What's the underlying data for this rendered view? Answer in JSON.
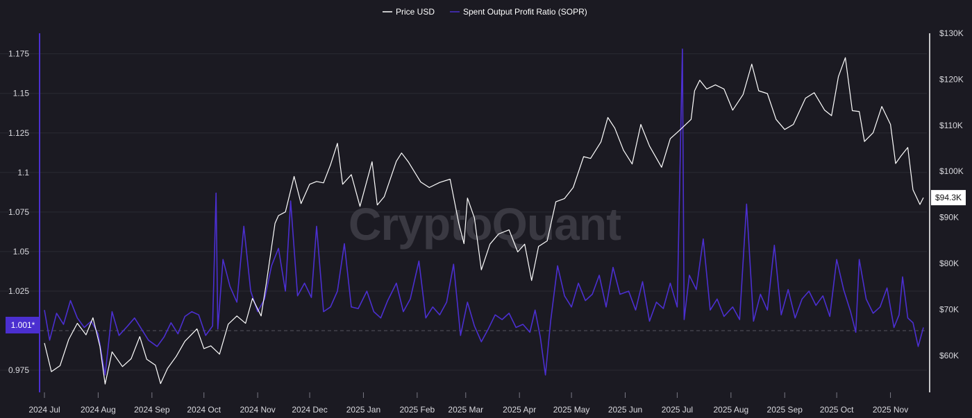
{
  "legend": [
    {
      "label": "Price USD",
      "color": "#ffffff"
    },
    {
      "label": "Spent Output Profit Ratio (SOPR)",
      "color": "#4b2fd0"
    }
  ],
  "watermark": "CryptoQuant",
  "badges": {
    "sopr_current": "1.001*",
    "price_current": "$94.3K"
  },
  "colors": {
    "background": "#1b1a22",
    "grid": "#2b2a33",
    "sopr": "#4b2fd0",
    "price": "#ffffff",
    "sopr_badge": "#4b2fd0",
    "price_badge": "#ffffff"
  },
  "chart_data": {
    "type": "line",
    "title": "",
    "legend_position": "top-center",
    "grid": true,
    "x_axis": {
      "start": "2024-07-01",
      "end": "2025-11-20",
      "tick_labels": [
        "2024 Jul",
        "2024 Aug",
        "2024 Sep",
        "2024 Oct",
        "2024 Nov",
        "2024 Dec",
        "2025 Jan",
        "2025 Feb",
        "2025 Mar",
        "2025 Apr",
        "2025 May",
        "2025 Jun",
        "2025 Jul",
        "2025 Aug",
        "2025 Sep",
        "2025 Oct",
        "2025 Nov"
      ]
    },
    "y_left": {
      "label": "",
      "range": [
        0.961,
        1.188
      ],
      "ticks": [
        0.975,
        1.0,
        1.025,
        1.05,
        1.075,
        1.1,
        1.125,
        1.15,
        1.175
      ],
      "tick_labels": [
        "0.975",
        "",
        "1.025",
        "1.05",
        "1.075",
        "1.1",
        "1.125",
        "1.15",
        "1.175"
      ],
      "reference_line": 1.0
    },
    "y_right": {
      "label": "",
      "range": [
        52000,
        130000
      ],
      "ticks": [
        60000,
        70000,
        80000,
        90000,
        100000,
        110000,
        120000,
        130000
      ],
      "tick_labels": [
        "$60K",
        "$70K",
        "$80K",
        "$90K",
        "$100K",
        "$110K",
        "$120K",
        "$130K"
      ]
    },
    "series": [
      {
        "name": "Price USD",
        "axis": "right",
        "color": "#ffffff",
        "points": [
          [
            "2024-07-01",
            62700
          ],
          [
            "2024-07-05",
            56500
          ],
          [
            "2024-07-10",
            57800
          ],
          [
            "2024-07-15",
            63500
          ],
          [
            "2024-07-20",
            67000
          ],
          [
            "2024-07-25",
            64500
          ],
          [
            "2024-07-29",
            68200
          ],
          [
            "2024-08-02",
            62000
          ],
          [
            "2024-08-05",
            53800
          ],
          [
            "2024-08-09",
            60800
          ],
          [
            "2024-08-15",
            57600
          ],
          [
            "2024-08-20",
            59300
          ],
          [
            "2024-08-25",
            64100
          ],
          [
            "2024-08-29",
            59200
          ],
          [
            "2024-09-03",
            57900
          ],
          [
            "2024-09-06",
            53900
          ],
          [
            "2024-09-10",
            57200
          ],
          [
            "2024-09-15",
            59800
          ],
          [
            "2024-09-20",
            63100
          ],
          [
            "2024-09-27",
            65800
          ],
          [
            "2024-10-01",
            61500
          ],
          [
            "2024-10-05",
            62100
          ],
          [
            "2024-10-10",
            60300
          ],
          [
            "2024-10-15",
            66800
          ],
          [
            "2024-10-20",
            68600
          ],
          [
            "2024-10-25",
            67000
          ],
          [
            "2024-10-29",
            72400
          ],
          [
            "2024-11-03",
            68600
          ],
          [
            "2024-11-06",
            75700
          ],
          [
            "2024-11-11",
            88700
          ],
          [
            "2024-11-13",
            90400
          ],
          [
            "2024-11-17",
            91200
          ],
          [
            "2024-11-22",
            98900
          ],
          [
            "2024-11-26",
            93000
          ],
          [
            "2024-12-01",
            97200
          ],
          [
            "2024-12-05",
            97800
          ],
          [
            "2024-12-09",
            97500
          ],
          [
            "2024-12-13",
            101400
          ],
          [
            "2024-12-17",
            106100
          ],
          [
            "2024-12-20",
            97200
          ],
          [
            "2024-12-25",
            99300
          ],
          [
            "2024-12-30",
            92400
          ],
          [
            "2025-01-06",
            102100
          ],
          [
            "2025-01-09",
            92700
          ],
          [
            "2025-01-13",
            94500
          ],
          [
            "2025-01-20",
            102200
          ],
          [
            "2025-01-23",
            104000
          ],
          [
            "2025-01-27",
            102000
          ],
          [
            "2025-02-03",
            97700
          ],
          [
            "2025-02-08",
            96500
          ],
          [
            "2025-02-14",
            97600
          ],
          [
            "2025-02-20",
            98300
          ],
          [
            "2025-02-25",
            88700
          ],
          [
            "2025-02-28",
            84300
          ],
          [
            "2025-03-02",
            94200
          ],
          [
            "2025-03-06",
            89900
          ],
          [
            "2025-03-10",
            78600
          ],
          [
            "2025-03-15",
            84200
          ],
          [
            "2025-03-20",
            86400
          ],
          [
            "2025-03-26",
            87300
          ],
          [
            "2025-03-31",
            82500
          ],
          [
            "2025-04-04",
            84200
          ],
          [
            "2025-04-08",
            76300
          ],
          [
            "2025-04-12",
            83700
          ],
          [
            "2025-04-17",
            84900
          ],
          [
            "2025-04-22",
            93400
          ],
          [
            "2025-04-27",
            94100
          ],
          [
            "2025-05-02",
            96500
          ],
          [
            "2025-05-08",
            103200
          ],
          [
            "2025-05-12",
            102800
          ],
          [
            "2025-05-18",
            106400
          ],
          [
            "2025-05-22",
            111700
          ],
          [
            "2025-05-26",
            109400
          ],
          [
            "2025-05-31",
            104600
          ],
          [
            "2025-06-05",
            101600
          ],
          [
            "2025-06-10",
            110200
          ],
          [
            "2025-06-15",
            105500
          ],
          [
            "2025-06-22",
            100900
          ],
          [
            "2025-06-27",
            107100
          ],
          [
            "2025-07-02",
            108800
          ],
          [
            "2025-07-09",
            111300
          ],
          [
            "2025-07-11",
            117500
          ],
          [
            "2025-07-14",
            119800
          ],
          [
            "2025-07-18",
            117900
          ],
          [
            "2025-07-23",
            118800
          ],
          [
            "2025-07-28",
            117900
          ],
          [
            "2025-08-02",
            113300
          ],
          [
            "2025-08-08",
            116700
          ],
          [
            "2025-08-13",
            123300
          ],
          [
            "2025-08-17",
            117500
          ],
          [
            "2025-08-22",
            116900
          ],
          [
            "2025-08-27",
            111300
          ],
          [
            "2025-09-01",
            109100
          ],
          [
            "2025-09-06",
            110200
          ],
          [
            "2025-09-13",
            115900
          ],
          [
            "2025-09-18",
            117100
          ],
          [
            "2025-09-24",
            113300
          ],
          [
            "2025-09-28",
            112100
          ],
          [
            "2025-10-02",
            120600
          ],
          [
            "2025-10-06",
            124700
          ],
          [
            "2025-10-10",
            113200
          ],
          [
            "2025-10-14",
            113000
          ],
          [
            "2025-10-17",
            106500
          ],
          [
            "2025-10-22",
            108400
          ],
          [
            "2025-10-27",
            114100
          ],
          [
            "2025-11-01",
            110200
          ],
          [
            "2025-11-04",
            101700
          ],
          [
            "2025-11-07",
            103300
          ],
          [
            "2025-11-11",
            105200
          ],
          [
            "2025-11-14",
            96000
          ],
          [
            "2025-11-18",
            92800
          ],
          [
            "2025-11-20",
            94300
          ]
        ]
      },
      {
        "name": "Spent Output Profit Ratio (SOPR)",
        "axis": "left",
        "color": "#4b2fd0",
        "points": [
          [
            "2024-07-01",
            1.013
          ],
          [
            "2024-07-04",
            0.994
          ],
          [
            "2024-07-08",
            1.011
          ],
          [
            "2024-07-12",
            1.004
          ],
          [
            "2024-07-16",
            1.019
          ],
          [
            "2024-07-20",
            1.008
          ],
          [
            "2024-07-24",
            1.002
          ],
          [
            "2024-07-28",
            1.006
          ],
          [
            "2024-08-01",
            0.998
          ],
          [
            "2024-08-05",
            0.972
          ],
          [
            "2024-08-09",
            1.012
          ],
          [
            "2024-08-13",
            0.997
          ],
          [
            "2024-08-18",
            1.003
          ],
          [
            "2024-08-22",
            1.008
          ],
          [
            "2024-08-26",
            1.001
          ],
          [
            "2024-08-30",
            0.994
          ],
          [
            "2024-09-04",
            0.99
          ],
          [
            "2024-09-08",
            0.996
          ],
          [
            "2024-09-12",
            1.005
          ],
          [
            "2024-09-16",
            0.998
          ],
          [
            "2024-09-20",
            1.009
          ],
          [
            "2024-09-24",
            1.012
          ],
          [
            "2024-09-28",
            1.01
          ],
          [
            "2024-10-02",
            0.997
          ],
          [
            "2024-10-06",
            1.003
          ],
          [
            "2024-10-08",
            1.087
          ],
          [
            "2024-10-09",
            1.001
          ],
          [
            "2024-10-12",
            1.045
          ],
          [
            "2024-10-16",
            1.028
          ],
          [
            "2024-10-20",
            1.018
          ],
          [
            "2024-10-24",
            1.066
          ],
          [
            "2024-10-28",
            1.025
          ],
          [
            "2024-11-01",
            1.012
          ],
          [
            "2024-11-05",
            1.02
          ],
          [
            "2024-11-09",
            1.041
          ],
          [
            "2024-11-13",
            1.052
          ],
          [
            "2024-11-17",
            1.025
          ],
          [
            "2024-11-20",
            1.082
          ],
          [
            "2024-11-24",
            1.022
          ],
          [
            "2024-11-28",
            1.03
          ],
          [
            "2024-12-02",
            1.021
          ],
          [
            "2024-12-05",
            1.066
          ],
          [
            "2024-12-09",
            1.012
          ],
          [
            "2024-12-13",
            1.015
          ],
          [
            "2024-12-17",
            1.025
          ],
          [
            "2024-12-21",
            1.055
          ],
          [
            "2024-12-25",
            1.015
          ],
          [
            "2024-12-29",
            1.014
          ],
          [
            "2025-01-03",
            1.025
          ],
          [
            "2025-01-07",
            1.012
          ],
          [
            "2025-01-11",
            1.008
          ],
          [
            "2025-01-15",
            1.019
          ],
          [
            "2025-01-20",
            1.03
          ],
          [
            "2025-01-24",
            1.012
          ],
          [
            "2025-01-28",
            1.02
          ],
          [
            "2025-02-02",
            1.044
          ],
          [
            "2025-02-06",
            1.008
          ],
          [
            "2025-02-10",
            1.015
          ],
          [
            "2025-02-14",
            1.01
          ],
          [
            "2025-02-18",
            1.018
          ],
          [
            "2025-02-22",
            1.042
          ],
          [
            "2025-02-26",
            0.997
          ],
          [
            "2025-03-02",
            1.018
          ],
          [
            "2025-03-06",
            1.003
          ],
          [
            "2025-03-10",
            0.993
          ],
          [
            "2025-03-14",
            1.001
          ],
          [
            "2025-03-18",
            1.01
          ],
          [
            "2025-03-22",
            1.007
          ],
          [
            "2025-03-26",
            1.011
          ],
          [
            "2025-03-30",
            1.002
          ],
          [
            "2025-04-03",
            1.004
          ],
          [
            "2025-04-07",
            0.999
          ],
          [
            "2025-04-10",
            1.013
          ],
          [
            "2025-04-13",
            0.996
          ],
          [
            "2025-04-16",
            0.972
          ],
          [
            "2025-04-19",
            1.006
          ],
          [
            "2025-04-23",
            1.041
          ],
          [
            "2025-04-27",
            1.022
          ],
          [
            "2025-05-01",
            1.015
          ],
          [
            "2025-05-05",
            1.03
          ],
          [
            "2025-05-09",
            1.019
          ],
          [
            "2025-05-13",
            1.023
          ],
          [
            "2025-05-17",
            1.035
          ],
          [
            "2025-05-21",
            1.015
          ],
          [
            "2025-05-25",
            1.04
          ],
          [
            "2025-05-29",
            1.023
          ],
          [
            "2025-06-03",
            1.025
          ],
          [
            "2025-06-07",
            1.013
          ],
          [
            "2025-06-11",
            1.031
          ],
          [
            "2025-06-15",
            1.006
          ],
          [
            "2025-06-19",
            1.018
          ],
          [
            "2025-06-23",
            1.014
          ],
          [
            "2025-06-27",
            1.03
          ],
          [
            "2025-07-01",
            1.015
          ],
          [
            "2025-07-04",
            1.178
          ],
          [
            "2025-07-05",
            1.007
          ],
          [
            "2025-07-08",
            1.035
          ],
          [
            "2025-07-12",
            1.026
          ],
          [
            "2025-07-16",
            1.058
          ],
          [
            "2025-07-20",
            1.013
          ],
          [
            "2025-07-24",
            1.02
          ],
          [
            "2025-07-28",
            1.009
          ],
          [
            "2025-08-02",
            1.015
          ],
          [
            "2025-08-06",
            1.007
          ],
          [
            "2025-08-10",
            1.08
          ],
          [
            "2025-08-14",
            1.006
          ],
          [
            "2025-08-18",
            1.023
          ],
          [
            "2025-08-22",
            1.013
          ],
          [
            "2025-08-26",
            1.054
          ],
          [
            "2025-08-30",
            1.01
          ],
          [
            "2025-09-03",
            1.026
          ],
          [
            "2025-09-07",
            1.008
          ],
          [
            "2025-09-11",
            1.02
          ],
          [
            "2025-09-15",
            1.025
          ],
          [
            "2025-09-19",
            1.016
          ],
          [
            "2025-09-23",
            1.022
          ],
          [
            "2025-09-27",
            1.009
          ],
          [
            "2025-10-01",
            1.045
          ],
          [
            "2025-10-05",
            1.026
          ],
          [
            "2025-10-09",
            1.012
          ],
          [
            "2025-10-12",
            0.999
          ],
          [
            "2025-10-14",
            1.045
          ],
          [
            "2025-10-18",
            1.02
          ],
          [
            "2025-10-22",
            1.011
          ],
          [
            "2025-10-26",
            1.015
          ],
          [
            "2025-10-30",
            1.027
          ],
          [
            "2025-11-03",
            1.002
          ],
          [
            "2025-11-06",
            1.01
          ],
          [
            "2025-11-08",
            1.034
          ],
          [
            "2025-11-11",
            1.008
          ],
          [
            "2025-11-14",
            1.005
          ],
          [
            "2025-11-17",
            0.99
          ],
          [
            "2025-11-20",
            1.002
          ]
        ]
      }
    ]
  }
}
